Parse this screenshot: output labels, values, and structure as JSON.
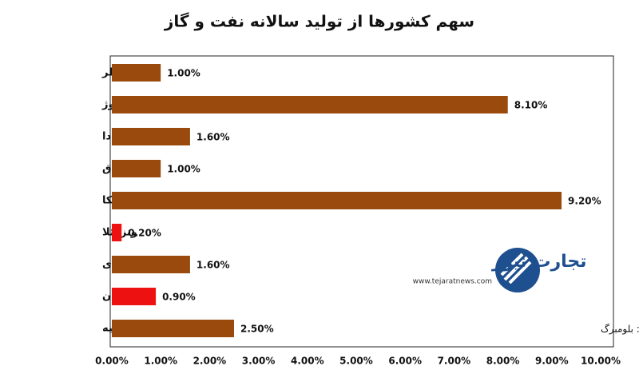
{
  "chart_data": {
    "type": "bar",
    "orientation": "horizontal",
    "title": "سهم کشورها از تولید سالانه نفت و گاز",
    "source": "منبع: بلومبرگ",
    "categories": [
      "قطر",
      "نروژ",
      "کانادا",
      "عراق",
      "آمریکا",
      "ونزوئلا",
      "عربستان سعودی",
      "ایران",
      "روسیه"
    ],
    "values": [
      1.0,
      8.1,
      1.6,
      1.0,
      9.2,
      0.2,
      1.6,
      0.9,
      2.5
    ],
    "value_labels": [
      "1.00%",
      "8.10%",
      "1.60%",
      "1.00%",
      "9.20%",
      "0.20%",
      "1.60%",
      "0.90%",
      "2.50%"
    ],
    "colors": [
      "#9a4a0c",
      "#9a4a0c",
      "#9a4a0c",
      "#9a4a0c",
      "#9a4a0c",
      "#ee1111",
      "#9a4a0c",
      "#ee1111",
      "#9a4a0c"
    ],
    "xlim": [
      0,
      10
    ],
    "xticks": [
      {
        "value": 0,
        "label": "0.00%"
      },
      {
        "value": 1,
        "label": "1.00%"
      },
      {
        "value": 2,
        "label": "2.00%"
      },
      {
        "value": 3,
        "label": "3.00%"
      },
      {
        "value": 4,
        "label": "4.00%"
      },
      {
        "value": 5,
        "label": "5.00%"
      },
      {
        "value": 6,
        "label": "6.00%"
      },
      {
        "value": 7,
        "label": "7.00%"
      },
      {
        "value": 8,
        "label": "8.00%"
      },
      {
        "value": 9,
        "label": "9.00%"
      },
      {
        "value": 10,
        "label": "10.00%"
      }
    ],
    "grid": false
  },
  "logo": {
    "name": "تجارت نیوز",
    "url": "www.tejaratnews.com"
  }
}
